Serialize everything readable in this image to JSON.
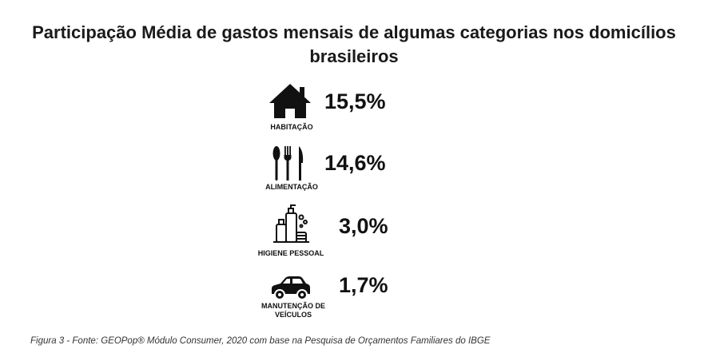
{
  "title": "Participação  Média de gastos mensais de algumas categorias nos domicílios brasileiros",
  "caption": "Figura 3 - Fonte: GEOPop® Módulo Consumer, 2020 com base na Pesquisa de Orçamentos Familiares do IBGE",
  "chart_data": {
    "type": "table",
    "title": "Participação  Média de gastos mensais de algumas categorias nos domicílios brasileiros",
    "categories": [
      "HABITAÇÃO",
      "ALIMENTAÇÃO",
      "HIGIENE PESSOAL",
      "MANUTENÇÃO DE VEÍCULOS"
    ],
    "values": [
      15.5,
      14.6,
      3.0,
      1.7
    ],
    "value_labels": [
      "15,5%",
      "14,6%",
      "3,0%",
      "1,7%"
    ],
    "icons": [
      "house-icon",
      "cutlery-icon",
      "toiletries-icon",
      "car-icon"
    ]
  },
  "items": [
    {
      "label": "HABITAÇÃO",
      "value": "15,5%",
      "icon": "house-icon"
    },
    {
      "label": "ALIMENTAÇÃO",
      "value": "14,6%",
      "icon": "cutlery-icon"
    },
    {
      "label": "HIGIENE PESSOAL",
      "value": "3,0%",
      "icon": "toiletries-icon"
    },
    {
      "label_line1": "MANUTENÇÃO DE",
      "label_line2": "VEÍCULOS",
      "value": "1,7%",
      "icon": "car-icon"
    }
  ]
}
